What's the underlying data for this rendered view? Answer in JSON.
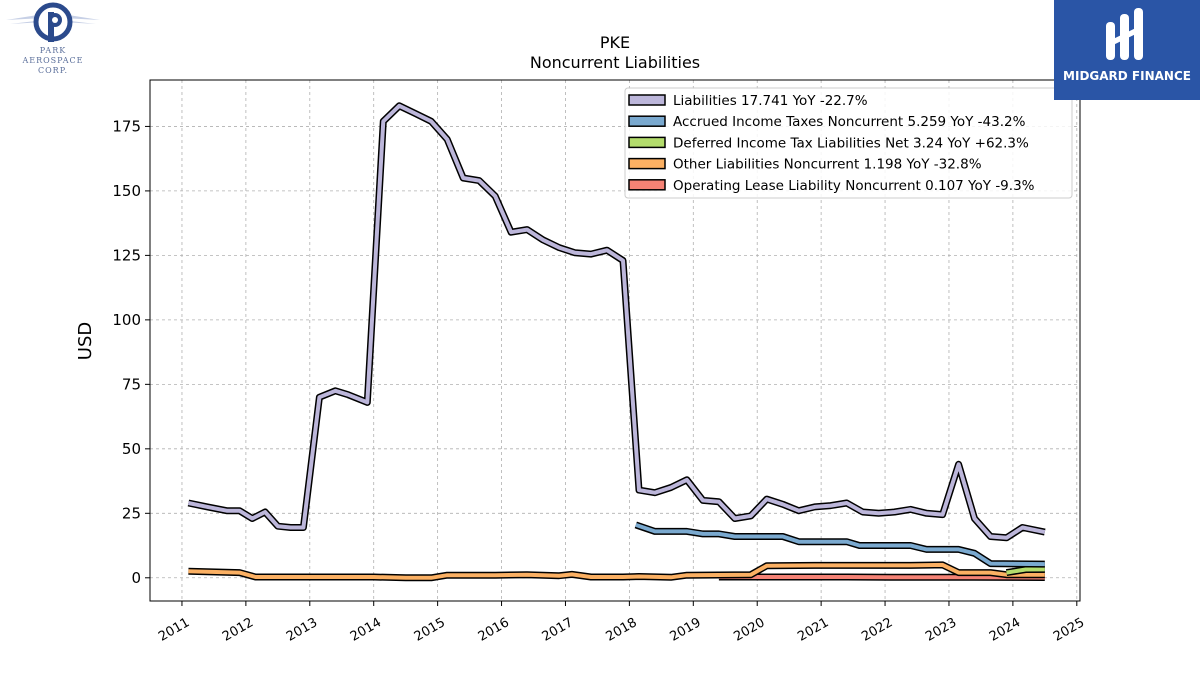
{
  "logos": {
    "left": {
      "lines": [
        "PARK",
        "AEROSPACE",
        "CORP."
      ]
    },
    "right": {
      "text": "MIDGARD FINANCE"
    }
  },
  "chart_data": {
    "type": "line",
    "title": "PKE",
    "subtitle": "Noncurrent  Liabilities",
    "ylabel": "USD",
    "xlabel": "",
    "xlim": [
      2010.5,
      2025.05
    ],
    "ylim": [
      -9,
      193
    ],
    "x_ticks": [
      "2011",
      "2012",
      "2013",
      "2014",
      "2015",
      "2016",
      "2017",
      "2018",
      "2019",
      "2020",
      "2021",
      "2022",
      "2023",
      "2024",
      "2025"
    ],
    "y_ticks": [
      0,
      25,
      50,
      75,
      100,
      125,
      150,
      175
    ],
    "grid": true,
    "legend_position": "top-right",
    "series": [
      {
        "name": "Liabilities  17.741 YoY -22.7%",
        "color": "#bcb6da",
        "points": [
          [
            2011.1,
            29
          ],
          [
            2011.4,
            27.5
          ],
          [
            2011.7,
            26
          ],
          [
            2011.9,
            26
          ],
          [
            2012.1,
            23
          ],
          [
            2012.3,
            25.5
          ],
          [
            2012.5,
            20
          ],
          [
            2012.7,
            19.5
          ],
          [
            2012.9,
            19.5
          ],
          [
            2013.15,
            70
          ],
          [
            2013.4,
            72.5
          ],
          [
            2013.6,
            71
          ],
          [
            2013.9,
            68
          ],
          [
            2014.15,
            177
          ],
          [
            2014.4,
            183
          ],
          [
            2014.65,
            180
          ],
          [
            2014.9,
            177
          ],
          [
            2015.15,
            170
          ],
          [
            2015.4,
            155
          ],
          [
            2015.65,
            154
          ],
          [
            2015.9,
            148
          ],
          [
            2016.15,
            134
          ],
          [
            2016.4,
            135
          ],
          [
            2016.65,
            131
          ],
          [
            2016.9,
            128
          ],
          [
            2017.15,
            126
          ],
          [
            2017.4,
            125.5
          ],
          [
            2017.65,
            127
          ],
          [
            2017.9,
            123
          ],
          [
            2018.15,
            34
          ],
          [
            2018.4,
            33
          ],
          [
            2018.65,
            35
          ],
          [
            2018.9,
            38
          ],
          [
            2019.15,
            30
          ],
          [
            2019.4,
            29.5
          ],
          [
            2019.65,
            23
          ],
          [
            2019.9,
            24
          ],
          [
            2020.15,
            30.5
          ],
          [
            2020.4,
            28.5
          ],
          [
            2020.65,
            26
          ],
          [
            2020.9,
            27.5
          ],
          [
            2021.15,
            28
          ],
          [
            2021.4,
            29
          ],
          [
            2021.65,
            25.5
          ],
          [
            2021.9,
            25
          ],
          [
            2022.15,
            25.5
          ],
          [
            2022.4,
            26.5
          ],
          [
            2022.65,
            25
          ],
          [
            2022.9,
            24.5
          ],
          [
            2023.15,
            44
          ],
          [
            2023.4,
            23
          ],
          [
            2023.65,
            16
          ],
          [
            2023.9,
            15.5
          ],
          [
            2024.15,
            19.5
          ],
          [
            2024.5,
            17.7
          ]
        ]
      },
      {
        "name": "Accrued Income Taxes Noncurrent  5.259 YoY -43.2%",
        "color": "#7aa9cf",
        "points": [
          [
            2018.1,
            20.5
          ],
          [
            2018.4,
            18
          ],
          [
            2018.9,
            18
          ],
          [
            2019.15,
            17
          ],
          [
            2019.4,
            17
          ],
          [
            2019.65,
            16
          ],
          [
            2019.9,
            16
          ],
          [
            2020.4,
            16
          ],
          [
            2020.65,
            14
          ],
          [
            2020.9,
            14
          ],
          [
            2021.4,
            14
          ],
          [
            2021.6,
            12.5
          ],
          [
            2022.4,
            12.5
          ],
          [
            2022.65,
            11
          ],
          [
            2023.15,
            11
          ],
          [
            2023.4,
            9.5
          ],
          [
            2023.65,
            5.5
          ],
          [
            2024.5,
            5.3
          ]
        ]
      },
      {
        "name": "Deferred Income Tax Liabilities Net  3.24 YoY +62.3%",
        "color": "#b3dc6c",
        "points": [
          [
            2023.9,
            2.0
          ],
          [
            2024.2,
            3.2
          ],
          [
            2024.5,
            3.24
          ]
        ]
      },
      {
        "name": "Other Liabilities Noncurrent  1.198 YoY -32.8%",
        "color": "#fbb063",
        "points": [
          [
            2011.1,
            2.5
          ],
          [
            2011.9,
            2
          ],
          [
            2012.15,
            0.3
          ],
          [
            2013.0,
            0.3
          ],
          [
            2014.0,
            0.3
          ],
          [
            2014.5,
            0.0
          ],
          [
            2014.9,
            0.0
          ],
          [
            2015.15,
            1.0
          ],
          [
            2015.9,
            1.0
          ],
          [
            2016.4,
            1.2
          ],
          [
            2016.9,
            0.8
          ],
          [
            2017.1,
            1.3
          ],
          [
            2017.4,
            0.3
          ],
          [
            2017.9,
            0.3
          ],
          [
            2018.15,
            0.5
          ],
          [
            2018.65,
            0.2
          ],
          [
            2018.9,
            1.0
          ],
          [
            2019.9,
            1.2
          ],
          [
            2020.15,
            4.7
          ],
          [
            2020.9,
            4.8
          ],
          [
            2021.4,
            4.8
          ],
          [
            2022.4,
            4.8
          ],
          [
            2022.9,
            5.0
          ],
          [
            2023.15,
            2.0
          ],
          [
            2023.65,
            2.0
          ],
          [
            2023.9,
            1.2
          ],
          [
            2024.5,
            1.2
          ]
        ]
      },
      {
        "name": "Operating Lease Liability Noncurrent  0.107 YoY -9.3%",
        "color": "#f58275",
        "points": [
          [
            2019.4,
            0.3
          ],
          [
            2020.4,
            0.3
          ],
          [
            2021.4,
            0.3
          ],
          [
            2022.4,
            0.2
          ],
          [
            2023.4,
            0.2
          ],
          [
            2024.5,
            0.1
          ]
        ]
      }
    ]
  }
}
